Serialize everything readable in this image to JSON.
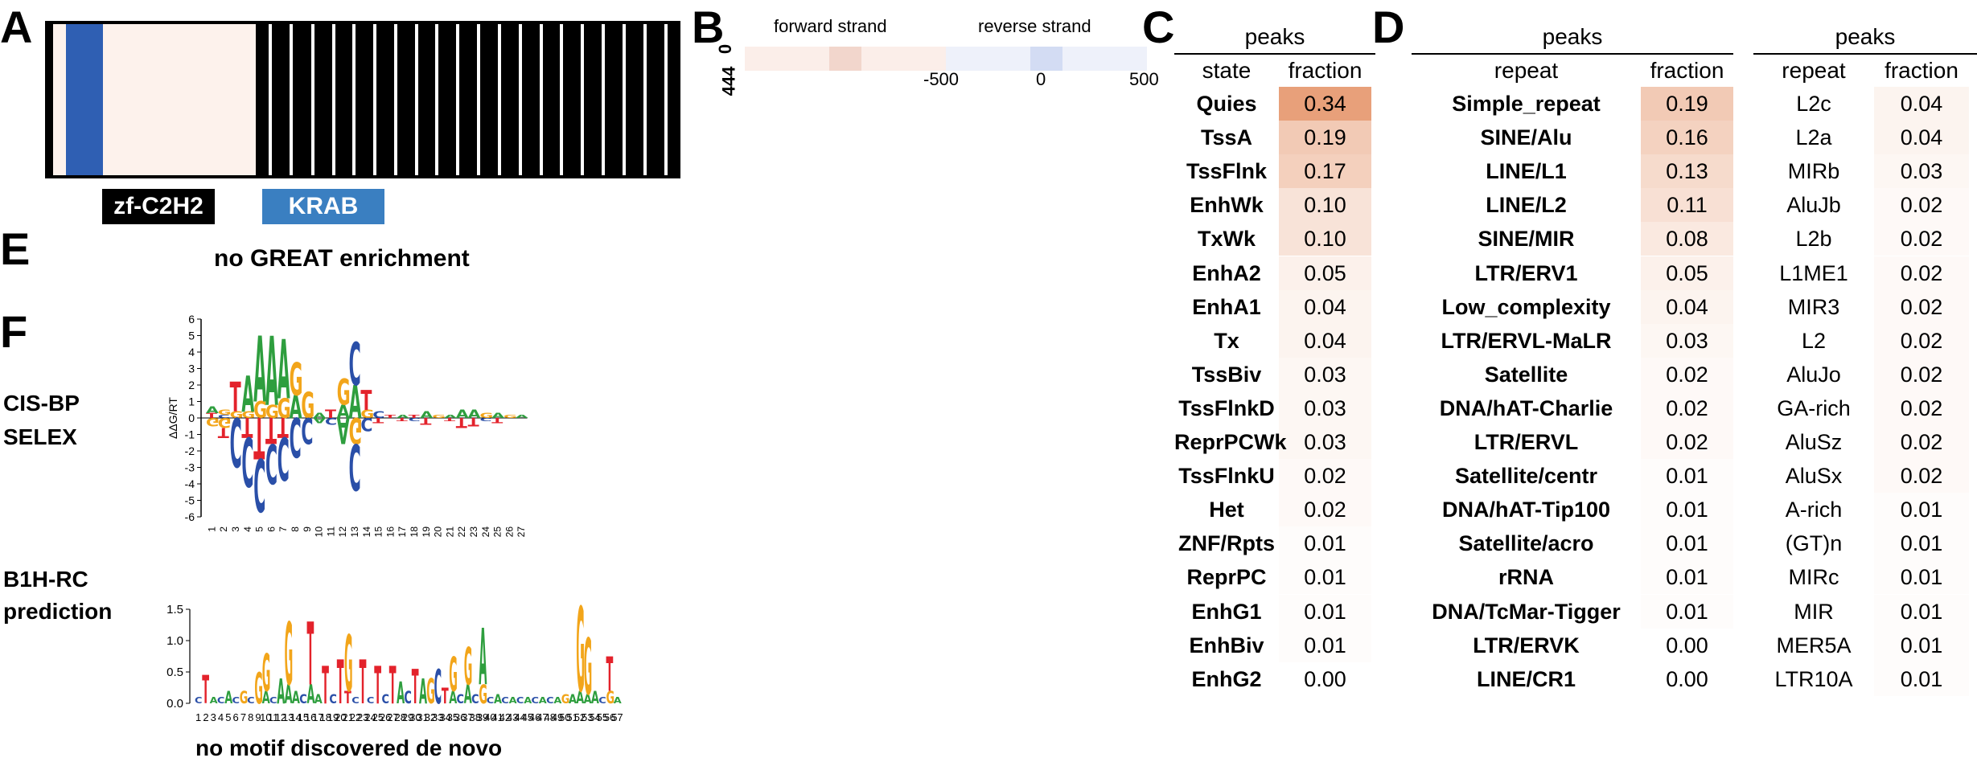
{
  "panel_letters": {
    "a": "A",
    "b": "B",
    "c": "C",
    "d": "D",
    "e": "E",
    "f": "F"
  },
  "panel_a": {
    "domain_labels": {
      "zf": "zf-C2H2",
      "krab": "KRAB"
    },
    "colors": {
      "zf": "#000000",
      "krab": "#2f5fb3",
      "krab_label_bg": "#3a7fc1",
      "background": "#fdf2ec"
    }
  },
  "panel_b": {
    "forward_label": "forward strand",
    "reverse_label": "reverse strand",
    "y_top_tick": "0",
    "y_bottom_tick": "444",
    "x_ticks": [
      "-500",
      "0",
      "500"
    ]
  },
  "panel_c": {
    "group_header": "peaks",
    "col_state": "state",
    "col_fraction": "fraction",
    "rows": [
      {
        "state": "Quies",
        "fraction": "0.34",
        "value": 0.34
      },
      {
        "state": "TssA",
        "fraction": "0.19",
        "value": 0.19
      },
      {
        "state": "TssFlnk",
        "fraction": "0.17",
        "value": 0.17
      },
      {
        "state": "EnhWk",
        "fraction": "0.10",
        "value": 0.1
      },
      {
        "state": "TxWk",
        "fraction": "0.10",
        "value": 0.1
      },
      {
        "state": "EnhA2",
        "fraction": "0.05",
        "value": 0.05
      },
      {
        "state": "EnhA1",
        "fraction": "0.04",
        "value": 0.04
      },
      {
        "state": "Tx",
        "fraction": "0.04",
        "value": 0.04
      },
      {
        "state": "TssBiv",
        "fraction": "0.03",
        "value": 0.03
      },
      {
        "state": "TssFlnkD",
        "fraction": "0.03",
        "value": 0.03
      },
      {
        "state": "ReprPCWk",
        "fraction": "0.03",
        "value": 0.03
      },
      {
        "state": "TssFlnkU",
        "fraction": "0.02",
        "value": 0.02
      },
      {
        "state": "Het",
        "fraction": "0.02",
        "value": 0.02
      },
      {
        "state": "ZNF/Rpts",
        "fraction": "0.01",
        "value": 0.01
      },
      {
        "state": "ReprPC",
        "fraction": "0.01",
        "value": 0.01
      },
      {
        "state": "EnhG1",
        "fraction": "0.01",
        "value": 0.01
      },
      {
        "state": "EnhBiv",
        "fraction": "0.01",
        "value": 0.01
      },
      {
        "state": "EnhG2",
        "fraction": "0.00",
        "value": 0.0
      }
    ]
  },
  "panel_d": {
    "left": {
      "group_header": "peaks",
      "col_repeat": "repeat",
      "col_fraction": "fraction",
      "rows": [
        {
          "repeat": "Simple_repeat",
          "fraction": "0.19",
          "value": 0.19
        },
        {
          "repeat": "SINE/Alu",
          "fraction": "0.16",
          "value": 0.16
        },
        {
          "repeat": "LINE/L1",
          "fraction": "0.13",
          "value": 0.13
        },
        {
          "repeat": "LINE/L2",
          "fraction": "0.11",
          "value": 0.11
        },
        {
          "repeat": "SINE/MIR",
          "fraction": "0.08",
          "value": 0.08
        },
        {
          "repeat": "LTR/ERV1",
          "fraction": "0.05",
          "value": 0.05
        },
        {
          "repeat": "Low_complexity",
          "fraction": "0.04",
          "value": 0.04
        },
        {
          "repeat": "LTR/ERVL-MaLR",
          "fraction": "0.03",
          "value": 0.03
        },
        {
          "repeat": "Satellite",
          "fraction": "0.02",
          "value": 0.02
        },
        {
          "repeat": "DNA/hAT-Charlie",
          "fraction": "0.02",
          "value": 0.02
        },
        {
          "repeat": "LTR/ERVL",
          "fraction": "0.02",
          "value": 0.02
        },
        {
          "repeat": "Satellite/centr",
          "fraction": "0.01",
          "value": 0.01
        },
        {
          "repeat": "DNA/hAT-Tip100",
          "fraction": "0.01",
          "value": 0.01
        },
        {
          "repeat": "Satellite/acro",
          "fraction": "0.01",
          "value": 0.01
        },
        {
          "repeat": "rRNA",
          "fraction": "0.01",
          "value": 0.01
        },
        {
          "repeat": "DNA/TcMar-Tigger",
          "fraction": "0.01",
          "value": 0.01
        },
        {
          "repeat": "LTR/ERVK",
          "fraction": "0.00",
          "value": 0.0
        },
        {
          "repeat": "LINE/CR1",
          "fraction": "0.00",
          "value": 0.0
        }
      ]
    },
    "right": {
      "group_header": "peaks",
      "col_repeat": "repeat",
      "col_fraction": "fraction",
      "rows": [
        {
          "repeat": "L2c",
          "fraction": "0.04",
          "value": 0.04
        },
        {
          "repeat": "L2a",
          "fraction": "0.04",
          "value": 0.04
        },
        {
          "repeat": "MIRb",
          "fraction": "0.03",
          "value": 0.03
        },
        {
          "repeat": "AluJb",
          "fraction": "0.02",
          "value": 0.02
        },
        {
          "repeat": "L2b",
          "fraction": "0.02",
          "value": 0.02
        },
        {
          "repeat": "L1ME1",
          "fraction": "0.02",
          "value": 0.02
        },
        {
          "repeat": "MIR3",
          "fraction": "0.02",
          "value": 0.02
        },
        {
          "repeat": "L2",
          "fraction": "0.02",
          "value": 0.02
        },
        {
          "repeat": "AluJo",
          "fraction": "0.02",
          "value": 0.02
        },
        {
          "repeat": "GA-rich",
          "fraction": "0.02",
          "value": 0.02
        },
        {
          "repeat": "AluSz",
          "fraction": "0.02",
          "value": 0.02
        },
        {
          "repeat": "AluSx",
          "fraction": "0.02",
          "value": 0.02
        },
        {
          "repeat": "A-rich",
          "fraction": "0.01",
          "value": 0.01
        },
        {
          "repeat": "(GT)n",
          "fraction": "0.01",
          "value": 0.01
        },
        {
          "repeat": "MIRc",
          "fraction": "0.01",
          "value": 0.01
        },
        {
          "repeat": "MIR",
          "fraction": "0.01",
          "value": 0.01
        },
        {
          "repeat": "MER5A",
          "fraction": "0.01",
          "value": 0.01
        },
        {
          "repeat": "LTR10A",
          "fraction": "0.01",
          "value": 0.01
        }
      ]
    },
    "heat_color": "#e8a07a"
  },
  "panel_e": {
    "text": "no GREAT enrichment"
  },
  "panel_f": {
    "cisbp_label_1": "CIS-BP",
    "cisbp_label_2": "SELEX",
    "cisbp_ylabel": "ΔΔG/RT",
    "cisbp_yticks": [
      "6",
      "5",
      "4",
      "3",
      "2",
      "1",
      "0",
      "-1",
      "-2",
      "-3",
      "-4",
      "-5",
      "-6"
    ],
    "cisbp_xticks": [
      "1",
      "2",
      "3",
      "4",
      "5",
      "6",
      "7",
      "8",
      "9",
      "10",
      "11",
      "12",
      "13",
      "14",
      "15",
      "16",
      "17",
      "18",
      "19",
      "20",
      "21",
      "22",
      "23",
      "24",
      "25",
      "26",
      "27"
    ],
    "b1h_label_1": "B1H-RC",
    "b1h_label_2": "prediction",
    "b1h_yticks": [
      "1.5",
      "1.0",
      "0.5",
      "0.0"
    ],
    "b1h_xticks": [
      "1",
      "2",
      "3",
      "4",
      "5",
      "6",
      "7",
      "8",
      "9",
      "10",
      "11",
      "12",
      "13",
      "14",
      "15",
      "16",
      "17",
      "18",
      "19",
      "20",
      "21",
      "22",
      "23",
      "24",
      "25",
      "26",
      "27",
      "28",
      "29",
      "30",
      "31",
      "32",
      "33",
      "34",
      "35",
      "36",
      "37",
      "38",
      "39",
      "40",
      "41",
      "42",
      "43",
      "44",
      "45",
      "46",
      "47",
      "48",
      "49",
      "50",
      "51",
      "52",
      "53",
      "54",
      "55",
      "56",
      "57"
    ],
    "de_novo_text": "no motif discovered de novo",
    "base_colors": {
      "A": "#2e9e3e",
      "C": "#2a4fa8",
      "G": "#f2a51a",
      "T": "#e3222b"
    }
  }
}
